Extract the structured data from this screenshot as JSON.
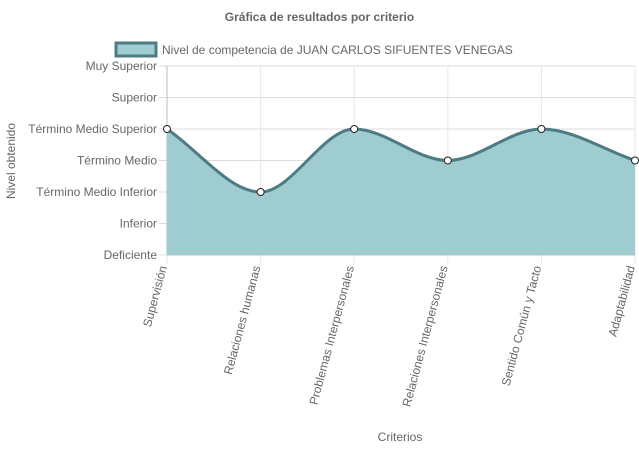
{
  "chart_data": {
    "type": "area",
    "title": "Gráfica de resultados por criterio",
    "xlabel": "Criterios",
    "ylabel": "Nivel obtenido",
    "categories": [
      "Supervisión",
      "Relaciones humanas",
      "Problemas Interpersonales",
      "Relaciones Interpersonales",
      "Sentido Común y Tacto",
      "Adaptabilidad"
    ],
    "y_levels": [
      "Deficiente",
      "Inferior",
      "Término Medio Inferior",
      "Término Medio",
      "Término Medio Superior",
      "Superior",
      "Muy Superior"
    ],
    "ylim": [
      0,
      6
    ],
    "series": [
      {
        "name": "Nivel de competencia de JUAN CARLOS SIFUENTES VENEGAS",
        "values": [
          4,
          2,
          4,
          3,
          4,
          3
        ],
        "value_labels": [
          "Término Medio Superior",
          "Término Medio Inferior",
          "Término Medio Superior",
          "Término Medio",
          "Término Medio Superior",
          "Término Medio"
        ],
        "fill_color": "#9fcccf",
        "line_color": "#4d7b84",
        "point_color": "#ffffff"
      }
    ],
    "grid": true,
    "legend_position": "top"
  }
}
